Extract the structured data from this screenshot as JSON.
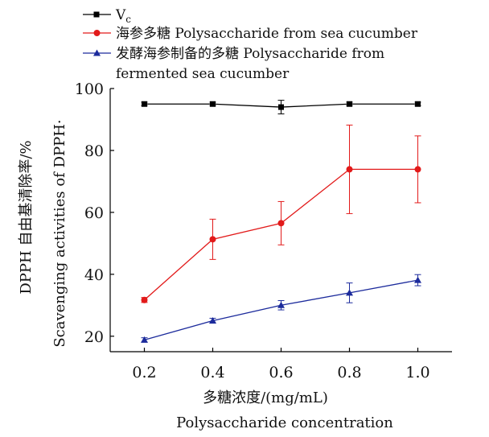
{
  "chart_data": {
    "type": "line",
    "x": [
      0.2,
      0.4,
      0.6,
      0.8,
      1.0
    ],
    "xlim": [
      0.1,
      1.1
    ],
    "ylim": [
      15,
      100
    ],
    "xticks": [
      "0.2",
      "0.4",
      "0.6",
      "0.8",
      "1.0"
    ],
    "yticks": [
      "20",
      "40",
      "60",
      "80",
      "100"
    ],
    "xlabel_cn": "多糖浓度/(mg/mL)",
    "xlabel_en": "Polysaccharide concentration",
    "ylabel_cn": "DPPH 自由基清除率/%",
    "ylabel_en": "Scavenging activities of DPPH·",
    "grid": false,
    "legend_position": "top",
    "series": [
      {
        "name": "Vc",
        "legend_main": "V",
        "legend_sub": "c",
        "marker": "square",
        "color": "#000000",
        "values": [
          95,
          95,
          94,
          95,
          95
        ],
        "errors": [
          0.6,
          0.6,
          2.2,
          0.6,
          0.6
        ]
      },
      {
        "name": "海参多糖 Polysaccharide from sea cucumber",
        "legend_line1": "海参多糖 Polysaccharide from sea cucumber",
        "marker": "circle",
        "color": "#e21a1a",
        "values": [
          31.7,
          51.3,
          56.5,
          73.9,
          73.9
        ],
        "errors": [
          0.8,
          6.5,
          7.0,
          14.3,
          10.8
        ]
      },
      {
        "name": "发酵海参制备的多糖 Polysaccharide from fermented sea cucumber",
        "legend_line1": "发酵海参制备的多糖 Polysaccharide from",
        "legend_line2": "fermented sea cucumber",
        "marker": "triangle",
        "color": "#1c2b9c",
        "values": [
          18.8,
          25.0,
          30.0,
          34.0,
          38.1
        ],
        "errors": [
          0.7,
          0.8,
          1.5,
          3.2,
          1.8
        ]
      }
    ]
  }
}
